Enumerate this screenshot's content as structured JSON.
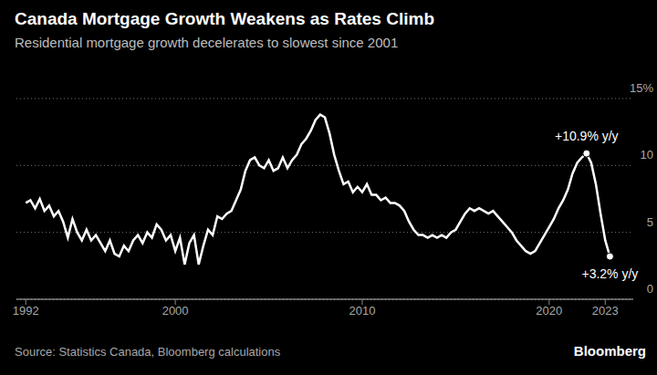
{
  "chart_data": {
    "type": "line",
    "title": "Canada Mortgage Growth Weakens as Rates Climb",
    "subtitle": "Residential mortgage growth decelerates to slowest since 2001",
    "source": "Source: Statistics Canada, Bloomberg calculations",
    "brand": "Bloomberg",
    "color": "#ffffff",
    "grid": true,
    "xlim": [
      1991.5,
      2024.5
    ],
    "xticks": [
      1992,
      2000,
      2010,
      2020,
      2023
    ],
    "ylim": [
      0,
      15
    ],
    "yticks": [
      0,
      5,
      10,
      {
        "value": 15,
        "label": "15%"
      }
    ],
    "x": [
      1992.0,
      1992.25,
      1992.5,
      1992.75,
      1993.0,
      1993.25,
      1993.5,
      1993.75,
      1994.0,
      1994.25,
      1994.5,
      1994.75,
      1995.0,
      1995.25,
      1995.5,
      1995.75,
      1996.0,
      1996.25,
      1996.5,
      1996.75,
      1997.0,
      1997.25,
      1997.5,
      1997.75,
      1998.0,
      1998.25,
      1998.5,
      1998.75,
      1999.0,
      1999.25,
      1999.5,
      1999.75,
      2000.0,
      2000.25,
      2000.5,
      2000.75,
      2001.0,
      2001.25,
      2001.5,
      2001.75,
      2002.0,
      2002.25,
      2002.5,
      2002.75,
      2003.0,
      2003.25,
      2003.5,
      2003.75,
      2004.0,
      2004.25,
      2004.5,
      2004.75,
      2005.0,
      2005.25,
      2005.5,
      2005.75,
      2006.0,
      2006.25,
      2006.5,
      2006.75,
      2007.0,
      2007.25,
      2007.5,
      2007.75,
      2008.0,
      2008.25,
      2008.5,
      2008.75,
      2009.0,
      2009.25,
      2009.5,
      2009.75,
      2010.0,
      2010.25,
      2010.5,
      2010.75,
      2011.0,
      2011.25,
      2011.5,
      2011.75,
      2012.0,
      2012.25,
      2012.5,
      2012.75,
      2013.0,
      2013.25,
      2013.5,
      2013.75,
      2014.0,
      2014.25,
      2014.5,
      2014.75,
      2015.0,
      2015.25,
      2015.5,
      2015.75,
      2016.0,
      2016.25,
      2016.5,
      2016.75,
      2017.0,
      2017.25,
      2017.5,
      2017.75,
      2018.0,
      2018.25,
      2018.5,
      2018.75,
      2019.0,
      2019.25,
      2019.5,
      2019.75,
      2020.0,
      2020.25,
      2020.5,
      2020.75,
      2021.0,
      2021.25,
      2021.5,
      2021.75,
      2022.0,
      2022.25,
      2022.5,
      2022.75,
      2023.0,
      2023.25
    ],
    "values": [
      7.2,
      7.4,
      6.8,
      7.5,
      6.6,
      7.0,
      6.2,
      6.6,
      5.8,
      4.6,
      6.0,
      5.0,
      4.4,
      5.2,
      4.4,
      4.8,
      4.2,
      3.6,
      4.4,
      3.4,
      3.2,
      4.0,
      3.6,
      4.4,
      4.8,
      4.2,
      5.0,
      4.6,
      5.6,
      5.2,
      4.4,
      4.8,
      3.6,
      4.6,
      2.6,
      4.2,
      4.8,
      2.6,
      4.0,
      5.2,
      4.8,
      6.2,
      6.0,
      6.4,
      6.6,
      7.4,
      8.2,
      9.6,
      10.4,
      10.6,
      10.0,
      9.8,
      10.4,
      9.6,
      9.8,
      10.6,
      9.8,
      10.4,
      10.8,
      11.6,
      12.0,
      12.6,
      13.4,
      13.8,
      13.6,
      12.4,
      10.8,
      9.6,
      8.6,
      8.8,
      8.0,
      8.4,
      8.0,
      8.6,
      7.8,
      7.8,
      7.4,
      7.6,
      7.2,
      7.2,
      7.0,
      6.6,
      5.8,
      5.2,
      4.8,
      4.8,
      4.6,
      4.8,
      4.6,
      4.8,
      4.6,
      5.0,
      5.2,
      5.8,
      6.4,
      6.8,
      6.6,
      6.8,
      6.6,
      6.4,
      6.6,
      6.2,
      5.8,
      5.4,
      5.0,
      4.4,
      4.0,
      3.6,
      3.4,
      3.6,
      4.2,
      4.8,
      5.4,
      6.0,
      6.8,
      7.4,
      8.2,
      9.4,
      10.2,
      10.6,
      10.9,
      10.2,
      8.6,
      6.4,
      4.4,
      3.2
    ],
    "annotations": [
      {
        "text": "+10.9% y/y",
        "x": 2022.0,
        "y": 10.9
      },
      {
        "text": "+3.2% y/y",
        "x": 2023.25,
        "y": 3.2
      }
    ]
  }
}
